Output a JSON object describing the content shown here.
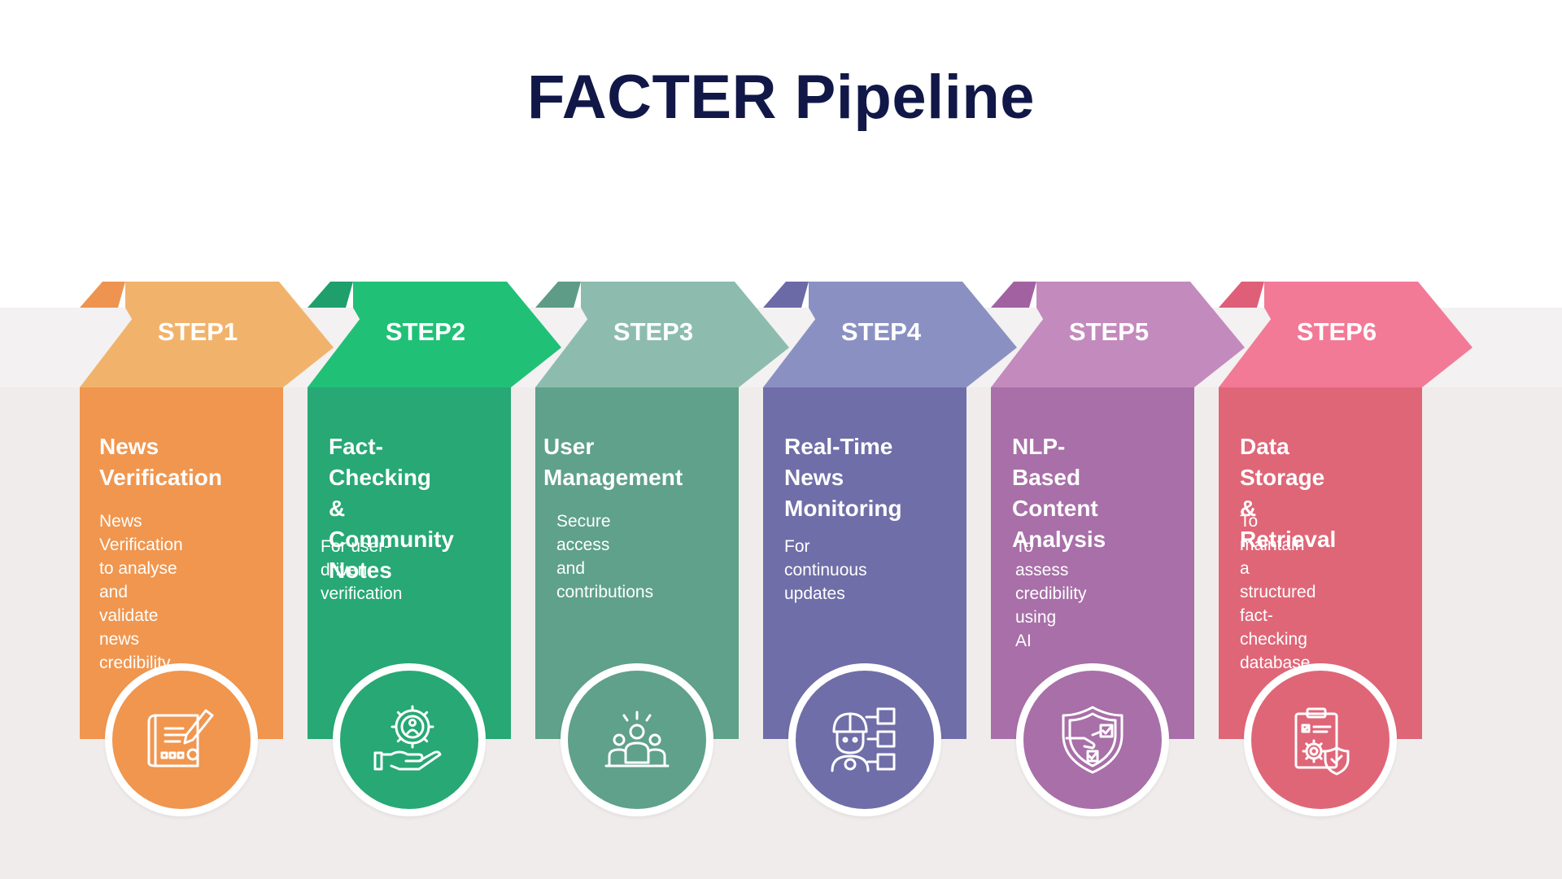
{
  "title": "FACTER Pipeline",
  "colors": {
    "background": "#ffffff",
    "band": "#f3f1f1",
    "lower_background": "#f0ecec",
    "title": "#111848"
  },
  "steps": [
    {
      "label": "STEP1",
      "heading": "News Verification",
      "heading_lines": [
        "News",
        "Verification"
      ],
      "description_lines": [
        "News Verification",
        "to analyse and",
        "validate news",
        "credibility"
      ],
      "icon": "blueprint-pencil-icon",
      "colors": {
        "arrow": "#f1b36c",
        "fold": "#ee9450",
        "panel": "#f0964f"
      }
    },
    {
      "label": "STEP2",
      "heading": "Fact-Checking & Community Notes",
      "heading_lines": [
        "Fact-Checking &",
        "Community",
        "Notes"
      ],
      "description_lines": [
        "For user-driven",
        "verification"
      ],
      "icon": "hand-gear-person-icon",
      "colors": {
        "arrow": "#21c077",
        "fold": "#1f9f6b",
        "panel": "#27a875"
      }
    },
    {
      "label": "STEP3",
      "heading": "User Management",
      "heading_lines": [
        "User",
        "Management"
      ],
      "description_lines": [
        "Secure access",
        "and contributions"
      ],
      "icon": "user-group-icon",
      "colors": {
        "arrow": "#8dbcaf",
        "fold": "#5e9c88",
        "panel": "#5fa18b"
      }
    },
    {
      "label": "STEP4",
      "heading": "Real-Time News Monitoring",
      "heading_lines": [
        "Real-Time",
        "News",
        "Monitoring"
      ],
      "description_lines": [
        "For continuous",
        "updates"
      ],
      "icon": "worker-monitoring-icon",
      "colors": {
        "arrow": "#8a91c2",
        "fold": "#6b6aa7",
        "panel": "#6f6ea8"
      }
    },
    {
      "label": "STEP5",
      "heading": "NLP-Based Content Analysis",
      "heading_lines": [
        "NLP-Based",
        "Content",
        "Analysis"
      ],
      "description_lines": [
        "To assess",
        "credibility using",
        "AI"
      ],
      "icon": "shield-check-icon",
      "colors": {
        "arrow": "#c38abd",
        "fold": "#a262a2",
        "panel": "#a86fa8"
      }
    },
    {
      "label": "STEP6",
      "heading": "Data Storage & Retrieval",
      "heading_lines": [
        "Data Storage &",
        "Retrieval"
      ],
      "description_lines": [
        "To maintain a",
        "structured fact-",
        "checking",
        "database"
      ],
      "icon": "clipboard-gear-icon",
      "colors": {
        "arrow": "#f27a97",
        "fold": "#de5f77",
        "panel": "#df6677"
      }
    }
  ]
}
